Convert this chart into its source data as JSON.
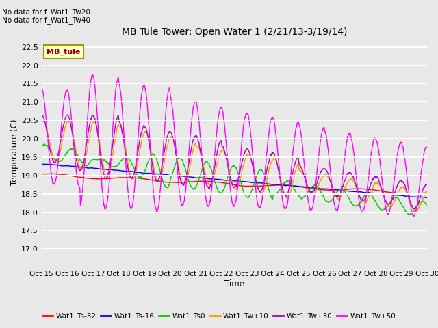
{
  "title": "MB Tule Tower: Open Water 1 (2/21/13-3/19/14)",
  "xlabel": "Time",
  "ylabel": "Temperature (C)",
  "ylim": [
    16.5,
    22.75
  ],
  "xlim": [
    0,
    15
  ],
  "xtick_labels": [
    "Oct 15",
    "Oct 16",
    "Oct 17",
    "Oct 18",
    "Oct 19",
    "Oct 20",
    "Oct 21",
    "Oct 22",
    "Oct 23",
    "Oct 24",
    "Oct 25",
    "Oct 26",
    "Oct 27",
    "Oct 28",
    "Oct 29",
    "Oct 30"
  ],
  "ytick_values": [
    17.0,
    17.5,
    18.0,
    18.5,
    19.0,
    19.5,
    20.0,
    20.5,
    21.0,
    21.5,
    22.0,
    22.5
  ],
  "ytick_labels": [
    "17.0",
    "17.5",
    "18.0",
    "18.5",
    "19.0",
    "19.5",
    "20.0",
    "20.5",
    "21.0",
    "21.5",
    "22.0",
    "22.5"
  ],
  "legend_labels": [
    "Wat1_Ts-32",
    "Wat1_Ts-16",
    "Wat1_Ts0",
    "Wat1_Tw+10",
    "Wat1_Tw+30",
    "Wat1_Tw+50"
  ],
  "legend_colors": [
    "#ff0000",
    "#0000ff",
    "#00cc00",
    "#ff9900",
    "#aa00cc",
    "#ff00ff"
  ],
  "annotation_text1": "No data for f_Wat1_Tw20",
  "annotation_text2": "No data for f_Wat1_Tw40",
  "inset_label": "MB_tule",
  "plot_bg_color": "#e8e8e8",
  "fig_bg_color": "#e8e8e8",
  "grid_color": "#ffffff",
  "linewidth": 1.0
}
